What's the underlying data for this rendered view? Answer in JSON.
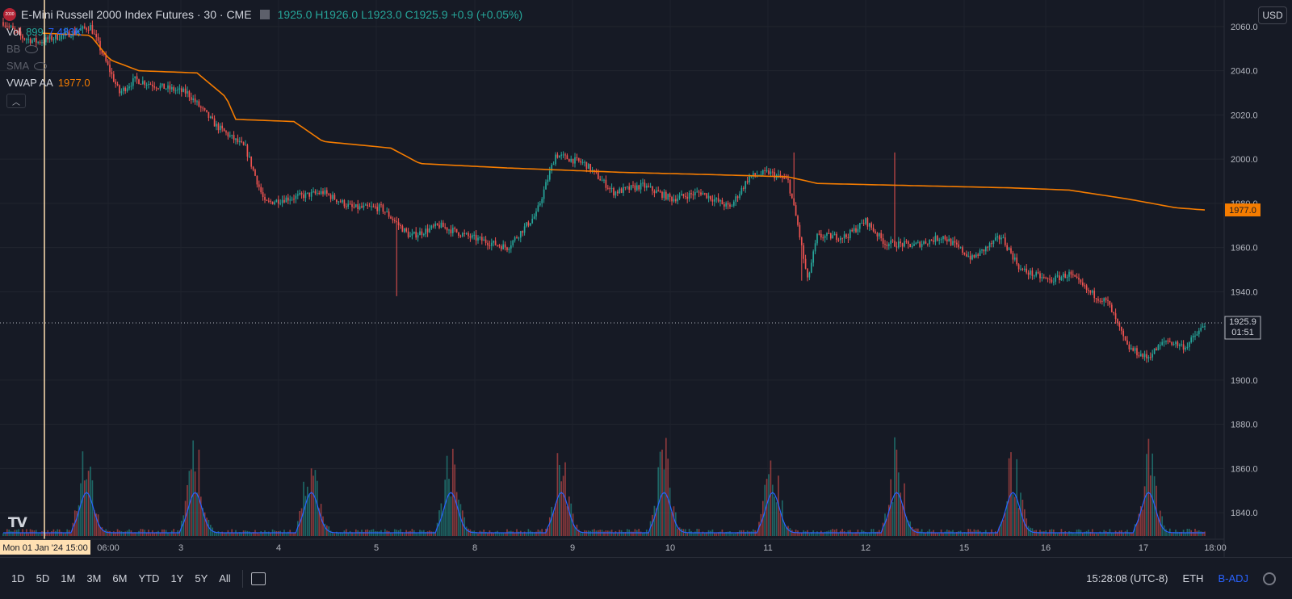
{
  "header": {
    "symbol": "E-Mini Russell 2000 Index Futures · 30 · CME",
    "ohlc": "1925.0  H1926.0  L1923.0  C1925.9  +0.9 (+0.05%)",
    "logo_text": "2000"
  },
  "indicators": {
    "vol_label": "Vol",
    "vol_value": "899",
    "vol_ma": "7.483K",
    "bb_label": "BB",
    "sma_label": "SMA",
    "vwap_label": "VWAP AA",
    "vwap_value": "1977.0"
  },
  "currency": "USD",
  "toolbar": {
    "ranges": [
      "1D",
      "5D",
      "1M",
      "3M",
      "6M",
      "YTD",
      "1Y",
      "5Y",
      "All"
    ],
    "clock": "15:28:08 (UTC-8)",
    "session": "ETH",
    "adjust": "B-ADJ"
  },
  "colors": {
    "up": "#26a69a",
    "down": "#ef5350",
    "vwap": "#f57c00",
    "vol_ma": "#2962ff",
    "crosshair_label": "#ffe0b2",
    "background": "#161a25"
  },
  "chart_data": {
    "type": "candlestick",
    "y_axis_ticks": [
      2060,
      2040,
      2020,
      2000,
      1980,
      1960,
      1940,
      1900,
      1880,
      1860,
      1840
    ],
    "ylim": [
      1828,
      2072
    ],
    "x_tick_labels": [
      "06:00",
      "3",
      "4",
      "5",
      "8",
      "9",
      "10",
      "11",
      "12",
      "15",
      "16",
      "17",
      "18:00"
    ],
    "crosshair_date_label": "Mon 01 Jan '24  15:00",
    "last_price_label": "1925.9",
    "last_price_countdown": "01:51",
    "vwap_last_label": "1977.0",
    "last_price": 1925.9,
    "vwap_last": 1977.0,
    "price_path": [
      {
        "i": 0,
        "p": 2062
      },
      {
        "i": 10,
        "p": 2055
      },
      {
        "i": 18,
        "p": 2053
      },
      {
        "i": 35,
        "p": 2057
      },
      {
        "i": 45,
        "p": 2060
      },
      {
        "i": 55,
        "p": 2040
      },
      {
        "i": 60,
        "p": 2030
      },
      {
        "i": 68,
        "p": 2036
      },
      {
        "i": 80,
        "p": 2033
      },
      {
        "i": 95,
        "p": 2030
      },
      {
        "i": 110,
        "p": 2015
      },
      {
        "i": 125,
        "p": 2005
      },
      {
        "i": 135,
        "p": 1980
      },
      {
        "i": 145,
        "p": 1982
      },
      {
        "i": 165,
        "p": 1985
      },
      {
        "i": 180,
        "p": 1978
      },
      {
        "i": 195,
        "p": 1978
      },
      {
        "i": 210,
        "p": 1965
      },
      {
        "i": 225,
        "p": 1970
      },
      {
        "i": 240,
        "p": 1965
      },
      {
        "i": 260,
        "p": 1960
      },
      {
        "i": 275,
        "p": 1975
      },
      {
        "i": 285,
        "p": 2002
      },
      {
        "i": 300,
        "p": 1998
      },
      {
        "i": 315,
        "p": 1985
      },
      {
        "i": 330,
        "p": 1988
      },
      {
        "i": 345,
        "p": 1982
      },
      {
        "i": 360,
        "p": 1985
      },
      {
        "i": 375,
        "p": 1978
      },
      {
        "i": 385,
        "p": 1992
      },
      {
        "i": 395,
        "p": 1994
      },
      {
        "i": 405,
        "p": 1990
      },
      {
        "i": 410,
        "p": 1970
      },
      {
        "i": 415,
        "p": 1945
      },
      {
        "i": 420,
        "p": 1965
      },
      {
        "i": 435,
        "p": 1965
      },
      {
        "i": 445,
        "p": 1972
      },
      {
        "i": 455,
        "p": 1962
      },
      {
        "i": 470,
        "p": 1961
      },
      {
        "i": 485,
        "p": 1965
      },
      {
        "i": 500,
        "p": 1955
      },
      {
        "i": 515,
        "p": 1965
      },
      {
        "i": 525,
        "p": 1950
      },
      {
        "i": 540,
        "p": 1945
      },
      {
        "i": 550,
        "p": 1948
      },
      {
        "i": 560,
        "p": 1940
      },
      {
        "i": 570,
        "p": 1935
      },
      {
        "i": 580,
        "p": 1915
      },
      {
        "i": 590,
        "p": 1910
      },
      {
        "i": 600,
        "p": 1918
      },
      {
        "i": 610,
        "p": 1915
      },
      {
        "i": 620,
        "p": 1925
      }
    ],
    "vwap_path": [
      {
        "i": 20,
        "p": 2057
      },
      {
        "i": 45,
        "p": 2056
      },
      {
        "i": 55,
        "p": 2045
      },
      {
        "i": 70,
        "p": 2040
      },
      {
        "i": 100,
        "p": 2039
      },
      {
        "i": 115,
        "p": 2028
      },
      {
        "i": 120,
        "p": 2018
      },
      {
        "i": 150,
        "p": 2017
      },
      {
        "i": 165,
        "p": 2008
      },
      {
        "i": 200,
        "p": 2005
      },
      {
        "i": 215,
        "p": 1998
      },
      {
        "i": 260,
        "p": 1996
      },
      {
        "i": 290,
        "p": 1995
      },
      {
        "i": 320,
        "p": 1994
      },
      {
        "i": 365,
        "p": 1993
      },
      {
        "i": 405,
        "p": 1992
      },
      {
        "i": 420,
        "p": 1989
      },
      {
        "i": 470,
        "p": 1988
      },
      {
        "i": 520,
        "p": 1987
      },
      {
        "i": 550,
        "p": 1986
      },
      {
        "i": 580,
        "p": 1982
      },
      {
        "i": 605,
        "p": 1978
      },
      {
        "i": 620,
        "p": 1977
      }
    ],
    "spikes": [
      {
        "i": 203,
        "low": 1938
      },
      {
        "i": 408,
        "high": 2003
      },
      {
        "i": 460,
        "high": 2003
      },
      {
        "i": 412,
        "low": 1945
      }
    ],
    "volume_sessions": [
      40,
      96,
      156,
      228,
      285,
      338,
      394,
      458,
      518,
      588
    ],
    "grid": true
  }
}
